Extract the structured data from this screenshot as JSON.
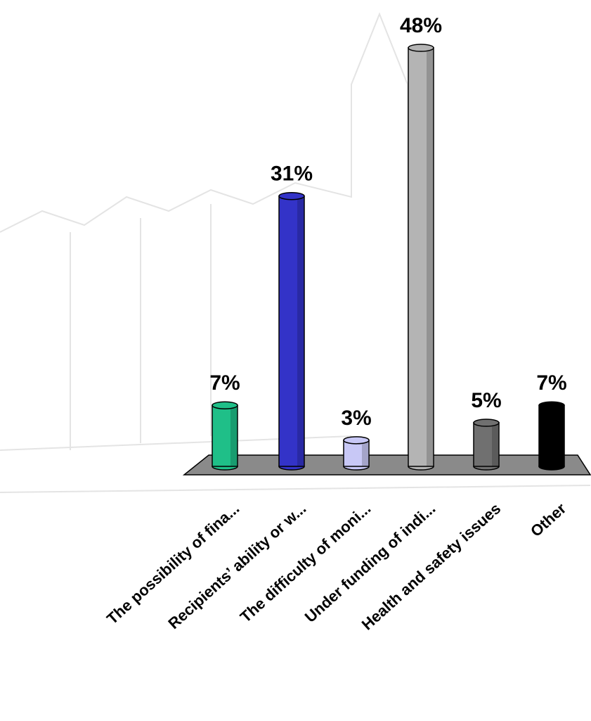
{
  "chart_data": {
    "type": "bar",
    "categories": [
      "The possibility of fina...",
      "Recipients’ ability or w...",
      "The difficulty of moni...",
      "Under funding of indi...",
      "Health and safety issues",
      "Other"
    ],
    "values": [
      7,
      31,
      3,
      48,
      5,
      7
    ],
    "value_labels": [
      "7%",
      "31%",
      "3%",
      "48%",
      "5%",
      "7%"
    ],
    "colors": [
      "#1fbf88",
      "#3333c8",
      "#c8c8f6",
      "#b4b4b4",
      "#707070",
      "#000000"
    ]
  }
}
